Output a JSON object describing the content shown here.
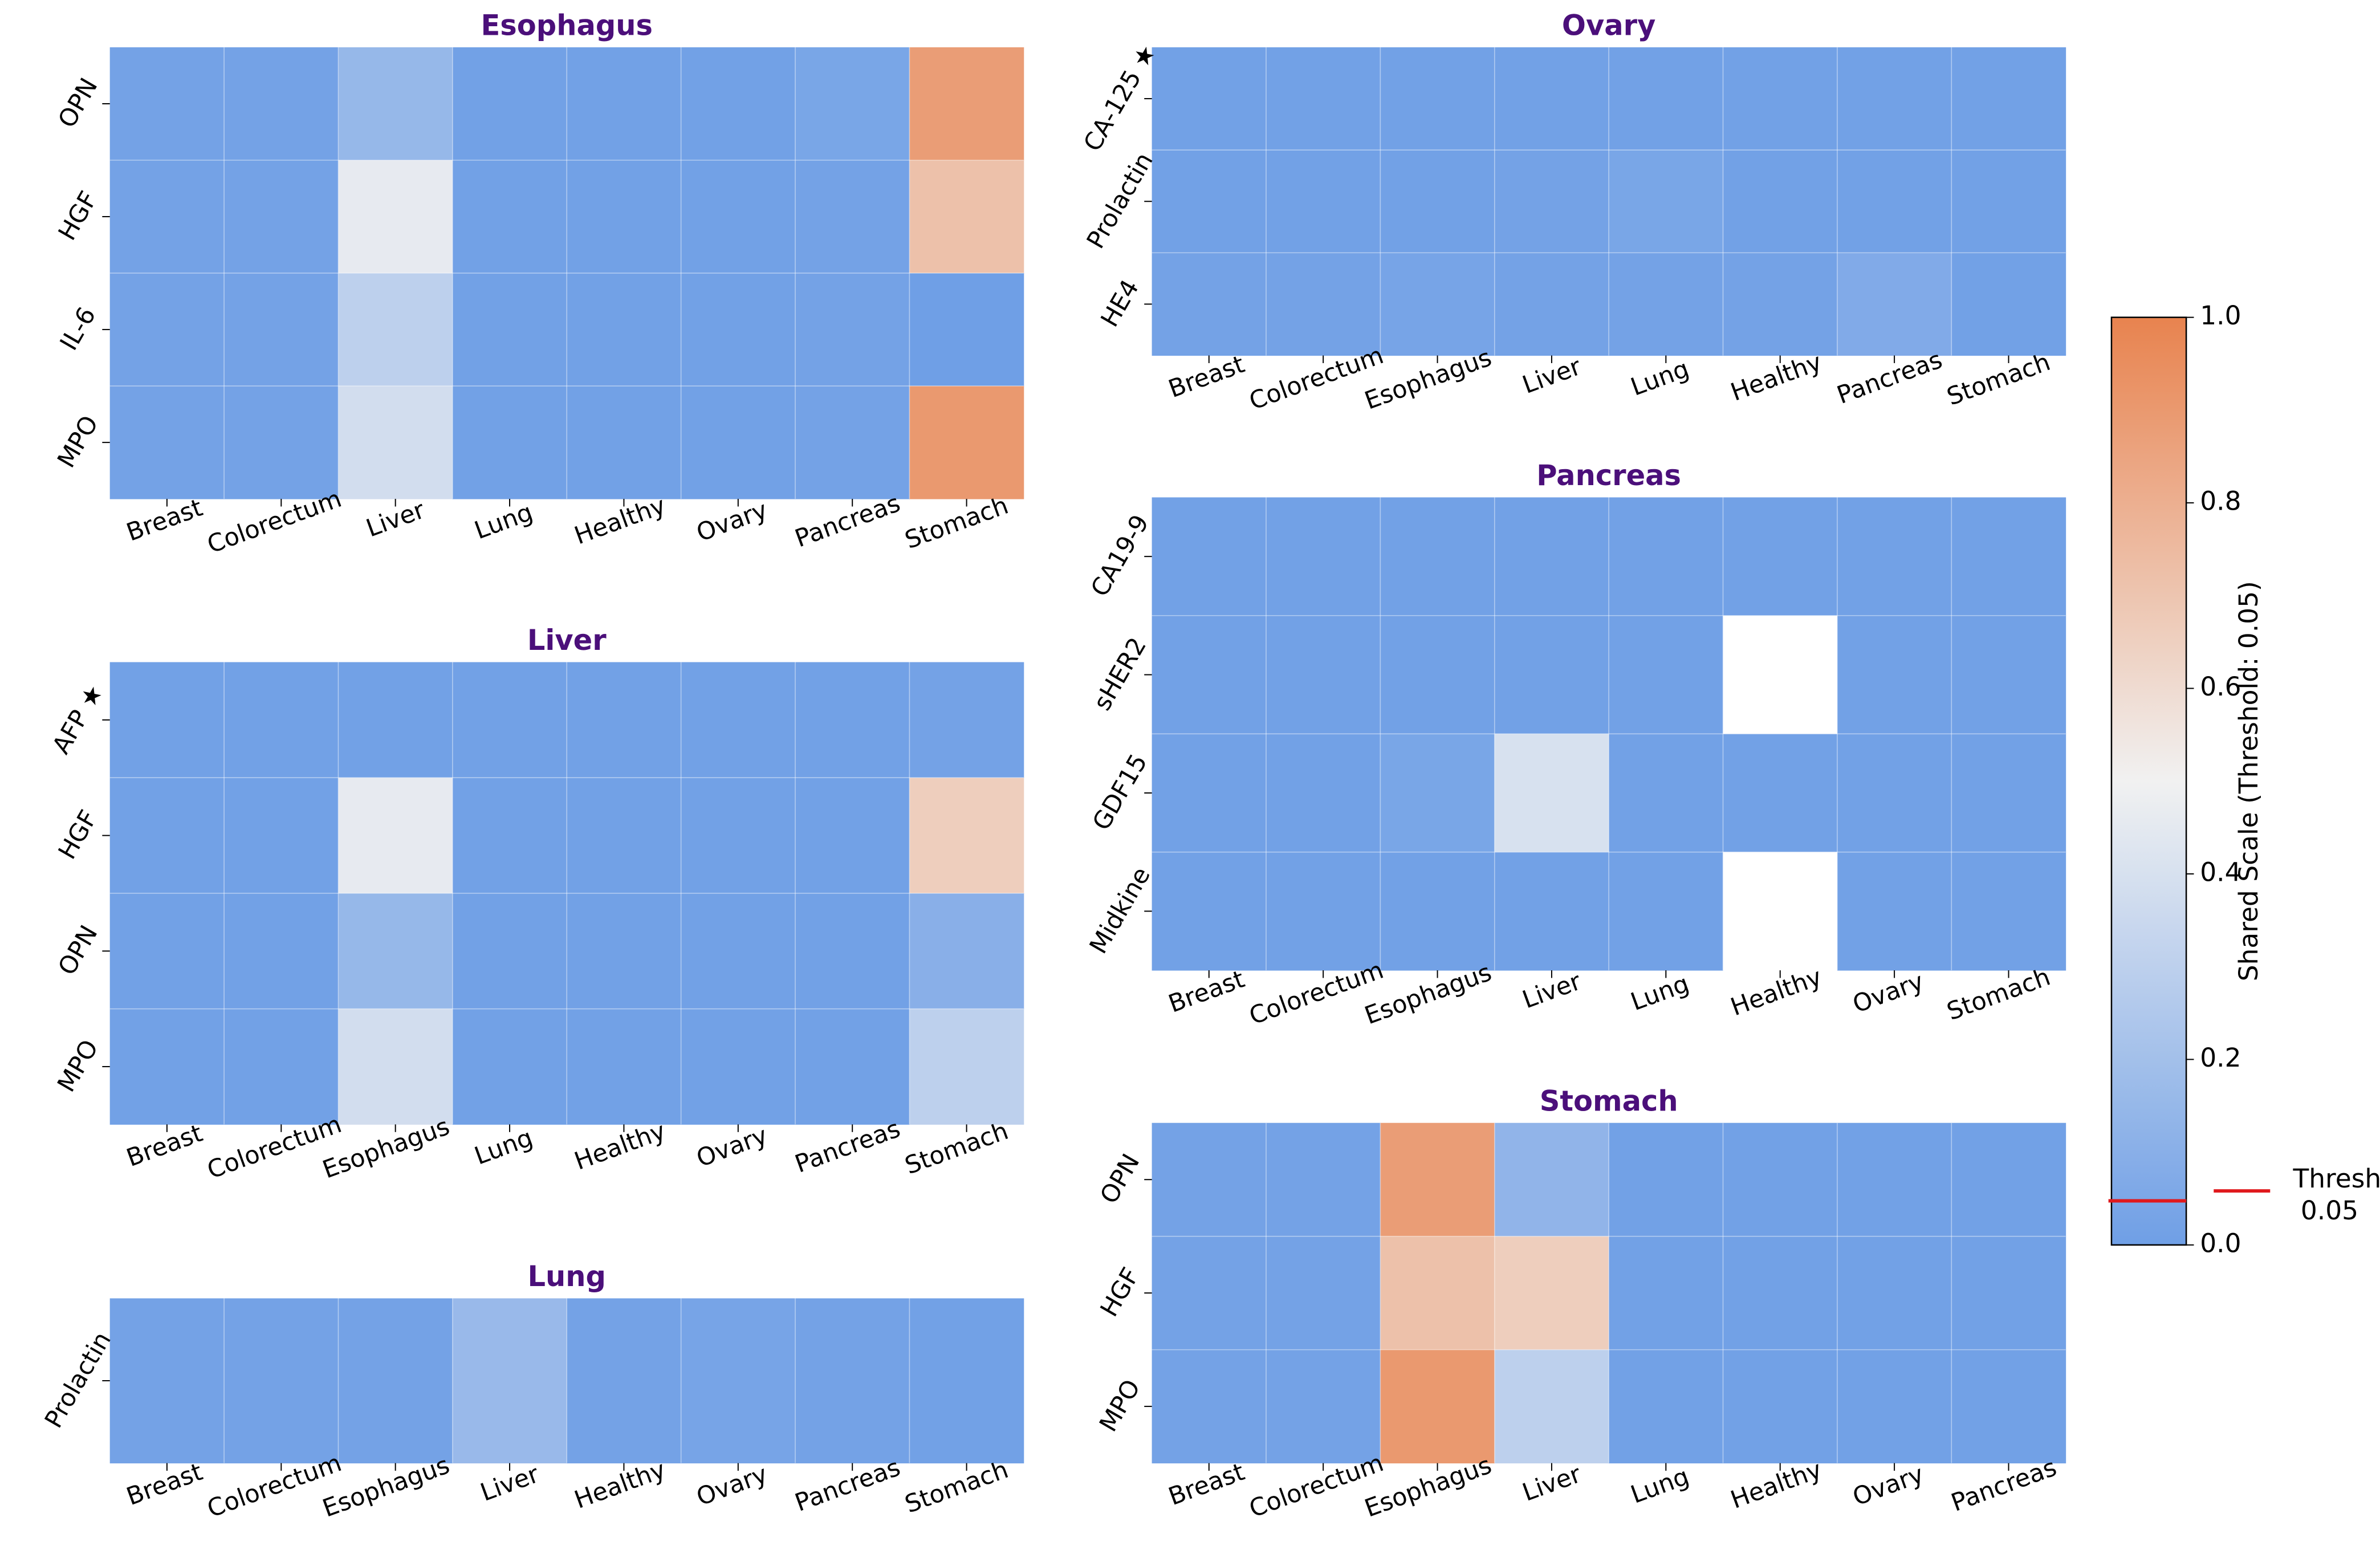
{
  "chart_data": {
    "type": "heatmap",
    "colorbar": {
      "label": "Shared Scale (Threshold: 0.05)",
      "min": 0.0,
      "max": 1.0,
      "tick_values": [
        0.0,
        0.2,
        0.4,
        0.6,
        0.8,
        1.0
      ],
      "tick_labels": [
        "0.0",
        "0.2",
        "0.4",
        "0.6",
        "0.8",
        "1.0"
      ],
      "threshold": 0.05,
      "threshold_label_line1": "Threshold",
      "threshold_label_line2": "0.05",
      "colormap": "coolwarm",
      "color_low": "#6f9fe6",
      "color_mid": "#f1f1f1",
      "color_high": "#e8834f",
      "threshold_color": "#e0191d"
    },
    "title_color": "#4b0f7a",
    "panels": [
      {
        "title": "Esophagus",
        "rows": [
          "OPN",
          "HGF",
          "IL-6",
          "MPO"
        ],
        "columns": [
          "Breast",
          "Colorectum",
          "Liver",
          "Lung",
          "Healthy",
          "Ovary",
          "Pancreas",
          "Stomach"
        ],
        "values": [
          [
            0.02,
            0.02,
            0.15,
            0.01,
            0.01,
            0.01,
            0.04,
            0.88
          ],
          [
            0.02,
            0.02,
            0.46,
            0.01,
            0.01,
            0.01,
            0.02,
            0.72
          ],
          [
            0.02,
            0.02,
            0.3,
            0.01,
            0.01,
            0.01,
            0.02,
            0.0
          ],
          [
            0.02,
            0.02,
            0.38,
            0.01,
            0.01,
            0.01,
            0.02,
            0.9
          ]
        ]
      },
      {
        "title": "Liver",
        "rows": [
          "AFP ★",
          "HGF",
          "OPN",
          "MPO"
        ],
        "columns": [
          "Breast",
          "Colorectum",
          "Esophagus",
          "Lung",
          "Healthy",
          "Ovary",
          "Pancreas",
          "Stomach"
        ],
        "values": [
          [
            0.01,
            0.01,
            0.01,
            0.01,
            0.01,
            0.01,
            0.01,
            0.02
          ],
          [
            0.01,
            0.01,
            0.46,
            0.01,
            0.01,
            0.01,
            0.01,
            0.66
          ],
          [
            0.01,
            0.01,
            0.15,
            0.01,
            0.01,
            0.01,
            0.01,
            0.1
          ],
          [
            0.01,
            0.01,
            0.38,
            0.01,
            0.01,
            0.01,
            0.01,
            0.3
          ]
        ]
      },
      {
        "title": "Lung",
        "rows": [
          "Prolactin"
        ],
        "columns": [
          "Breast",
          "Colorectum",
          "Esophagus",
          "Liver",
          "Healthy",
          "Ovary",
          "Pancreas",
          "Stomach"
        ],
        "values": [
          [
            0.02,
            0.02,
            0.02,
            0.16,
            0.02,
            0.03,
            0.02,
            0.01
          ]
        ]
      },
      {
        "title": "Ovary",
        "rows": [
          "CA-125 ★",
          "Prolactin",
          "HE4"
        ],
        "columns": [
          "Breast",
          "Colorectum",
          "Esophagus",
          "Liver",
          "Lung",
          "Healthy",
          "Pancreas",
          "Stomach"
        ],
        "values": [
          [
            0.01,
            0.01,
            0.01,
            0.01,
            0.01,
            0.01,
            0.01,
            0.01
          ],
          [
            0.01,
            0.01,
            0.01,
            0.02,
            0.04,
            0.01,
            0.01,
            0.01
          ],
          [
            0.02,
            0.02,
            0.03,
            0.02,
            0.02,
            0.02,
            0.07,
            0.01
          ]
        ]
      },
      {
        "title": "Pancreas",
        "rows": [
          "CA19-9",
          "sHER2",
          "GDF15",
          "Midkine"
        ],
        "columns": [
          "Breast",
          "Colorectum",
          "Esophagus",
          "Liver",
          "Lung",
          "Healthy",
          "Ovary",
          "Stomach"
        ],
        "values": [
          [
            0.01,
            0.01,
            0.01,
            0.01,
            0.01,
            0.01,
            0.01,
            0.01
          ],
          [
            0.01,
            0.01,
            0.01,
            0.01,
            0.01,
            null,
            0.01,
            0.01
          ],
          [
            0.01,
            0.01,
            0.04,
            0.4,
            0.01,
            0.01,
            0.01,
            0.01
          ],
          [
            0.01,
            0.01,
            0.01,
            0.01,
            0.01,
            null,
            0.01,
            0.01
          ]
        ]
      },
      {
        "title": "Stomach",
        "rows": [
          "OPN",
          "HGF",
          "MPO"
        ],
        "columns": [
          "Breast",
          "Colorectum",
          "Esophagus",
          "Liver",
          "Lung",
          "Healthy",
          "Ovary",
          "Pancreas"
        ],
        "values": [
          [
            0.02,
            0.02,
            0.88,
            0.13,
            0.01,
            0.01,
            0.01,
            0.01
          ],
          [
            0.02,
            0.02,
            0.72,
            0.66,
            0.01,
            0.01,
            0.01,
            0.01
          ],
          [
            0.02,
            0.02,
            0.9,
            0.3,
            0.01,
            0.01,
            0.01,
            0.01
          ]
        ]
      }
    ]
  }
}
